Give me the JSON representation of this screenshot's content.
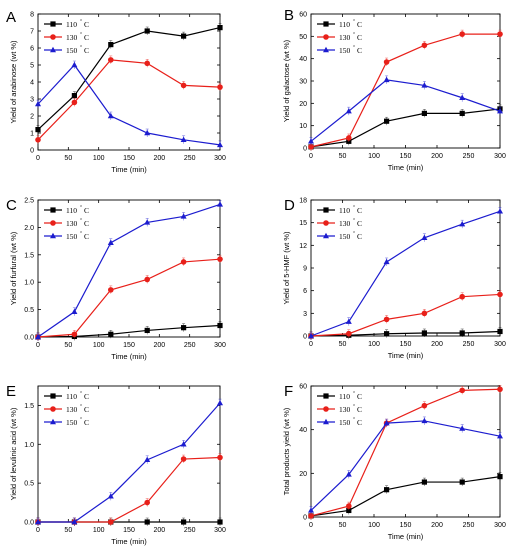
{
  "legend_units": "°C",
  "chart_data": [
    {
      "id": "A",
      "type": "line",
      "panel_label": "A",
      "xlabel": "Time (min)",
      "ylabel": "Yield of arabinose (wt %)",
      "xlim": [
        0,
        300
      ],
      "ylim": [
        0,
        8
      ],
      "xticks": [
        0,
        50,
        100,
        150,
        200,
        250,
        300
      ],
      "yticks": [
        0,
        1,
        2,
        3,
        4,
        5,
        6,
        7,
        8
      ],
      "x": [
        0,
        60,
        120,
        180,
        240,
        300
      ],
      "series": [
        {
          "name": "110 °C",
          "label_main": "110",
          "label_unit": "C",
          "color": "#000000",
          "marker": "square",
          "values": [
            1.2,
            3.2,
            6.2,
            7.0,
            6.7,
            7.2
          ]
        },
        {
          "name": "130 °C",
          "label_main": "130",
          "label_unit": "C",
          "color": "#e8201a",
          "marker": "circle",
          "values": [
            0.6,
            2.8,
            5.3,
            5.1,
            3.8,
            3.7
          ]
        },
        {
          "name": "150 °C",
          "label_main": "150",
          "label_unit": "C",
          "color": "#1c1ccf",
          "marker": "triangle",
          "values": [
            2.7,
            5.0,
            2.0,
            1.0,
            0.6,
            0.3
          ]
        }
      ]
    },
    {
      "id": "B",
      "type": "line",
      "panel_label": "B",
      "xlabel": "Time (min)",
      "ylabel": "Yield of galactose (wt %)",
      "xlim": [
        0,
        300
      ],
      "ylim": [
        0,
        60
      ],
      "xticks": [
        0,
        50,
        100,
        150,
        200,
        250,
        300
      ],
      "yticks": [
        0,
        10,
        20,
        30,
        40,
        50,
        60
      ],
      "x": [
        0,
        60,
        120,
        180,
        240,
        300
      ],
      "series": [
        {
          "name": "110 °C",
          "label_main": "110",
          "label_unit": "C",
          "color": "#000000",
          "marker": "square",
          "values": [
            0.5,
            3,
            12,
            15.5,
            15.5,
            17.5
          ]
        },
        {
          "name": "130 °C",
          "label_main": "130",
          "label_unit": "C",
          "color": "#e8201a",
          "marker": "circle",
          "values": [
            0.5,
            4.5,
            38.5,
            46,
            51,
            51
          ]
        },
        {
          "name": "150 °C",
          "label_main": "150",
          "label_unit": "C",
          "color": "#1c1ccf",
          "marker": "triangle",
          "values": [
            3,
            16.5,
            30.5,
            28,
            22.5,
            16.5
          ]
        }
      ]
    },
    {
      "id": "C",
      "type": "line",
      "panel_label": "C",
      "xlabel": "Time (min)",
      "ylabel": "Yield of furfural (wt %)",
      "xlim": [
        0,
        300
      ],
      "ylim": [
        0,
        2.5
      ],
      "xticks": [
        0,
        50,
        100,
        150,
        200,
        250,
        300
      ],
      "yticks": [
        0.0,
        0.5,
        1.0,
        1.5,
        2.0,
        2.5
      ],
      "ytick_labels": [
        "0.0",
        "0.5",
        "1.0",
        "1.5",
        "2.0",
        "2.5"
      ],
      "x": [
        0,
        60,
        120,
        180,
        240,
        300
      ],
      "series": [
        {
          "name": "110 °C",
          "label_main": "110",
          "label_unit": "C",
          "color": "#000000",
          "marker": "square",
          "values": [
            0,
            0.01,
            0.05,
            0.12,
            0.17,
            0.21
          ]
        },
        {
          "name": "130 °C",
          "label_main": "130",
          "label_unit": "C",
          "color": "#e8201a",
          "marker": "circle",
          "values": [
            0,
            0.05,
            0.86,
            1.05,
            1.37,
            1.42
          ]
        },
        {
          "name": "150 °C",
          "label_main": "150",
          "label_unit": "C",
          "color": "#1c1ccf",
          "marker": "triangle",
          "values": [
            0,
            0.46,
            1.72,
            2.09,
            2.2,
            2.42
          ]
        }
      ]
    },
    {
      "id": "D",
      "type": "line",
      "panel_label": "D",
      "xlabel": "Time (min)",
      "ylabel": "Yield of 5-HMF (wt %)",
      "xlim": [
        0,
        300
      ],
      "ylim": [
        0,
        18
      ],
      "xticks": [
        0,
        50,
        100,
        150,
        200,
        250,
        300
      ],
      "yticks": [
        0,
        3,
        6,
        9,
        12,
        15,
        18
      ],
      "x": [
        0,
        60,
        120,
        180,
        240,
        300
      ],
      "series": [
        {
          "name": "110 °C",
          "label_main": "110",
          "label_unit": "C",
          "color": "#000000",
          "marker": "square",
          "values": [
            0,
            0.1,
            0.3,
            0.4,
            0.4,
            0.6
          ]
        },
        {
          "name": "130 °C",
          "label_main": "130",
          "label_unit": "C",
          "color": "#e8201a",
          "marker": "circle",
          "values": [
            0,
            0.3,
            2.2,
            3.0,
            5.2,
            5.5
          ]
        },
        {
          "name": "150 °C",
          "label_main": "150",
          "label_unit": "C",
          "color": "#1c1ccf",
          "marker": "triangle",
          "values": [
            0,
            1.9,
            9.8,
            13.0,
            14.8,
            16.5
          ]
        }
      ]
    },
    {
      "id": "E",
      "type": "line",
      "panel_label": "E",
      "xlabel": "Time (min)",
      "ylabel": "Yield of levulinic acid (wt %)",
      "xlim": [
        0,
        300
      ],
      "ylim": [
        0,
        1.75
      ],
      "xticks": [
        0,
        50,
        100,
        150,
        200,
        250,
        300
      ],
      "yticks": [
        0.0,
        0.5,
        1.0,
        1.5
      ],
      "ytick_labels": [
        "0.0",
        "0.5",
        "1.0",
        "1.5"
      ],
      "x": [
        0,
        60,
        120,
        180,
        240,
        300
      ],
      "series": [
        {
          "name": "110 °C",
          "label_main": "110",
          "label_unit": "C",
          "color": "#000000",
          "marker": "square",
          "values": [
            0,
            0,
            0,
            0,
            0,
            0
          ]
        },
        {
          "name": "130 °C",
          "label_main": "130",
          "label_unit": "C",
          "color": "#e8201a",
          "marker": "circle",
          "values": [
            0,
            0,
            0,
            0.25,
            0.81,
            0.83
          ]
        },
        {
          "name": "150 °C",
          "label_main": "150",
          "label_unit": "C",
          "color": "#1c1ccf",
          "marker": "triangle",
          "values": [
            0,
            0,
            0.33,
            0.8,
            1.0,
            1.53
          ]
        }
      ]
    },
    {
      "id": "F",
      "type": "line",
      "panel_label": "F",
      "xlabel": "Time (min)",
      "ylabel": "Total products yield (wt %)",
      "xlim": [
        0,
        300
      ],
      "ylim": [
        0,
        60
      ],
      "xticks": [
        0,
        50,
        100,
        150,
        200,
        250,
        300
      ],
      "yticks": [
        0,
        20,
        40,
        60
      ],
      "x": [
        0,
        60,
        120,
        180,
        240,
        300
      ],
      "series": [
        {
          "name": "110 °C",
          "label_main": "110",
          "label_unit": "C",
          "color": "#000000",
          "marker": "square",
          "values": [
            0.5,
            3,
            12.5,
            16,
            16,
            18.5
          ]
        },
        {
          "name": "130 °C",
          "label_main": "130",
          "label_unit": "C",
          "color": "#e8201a",
          "marker": "circle",
          "values": [
            0.5,
            5,
            43,
            51,
            58,
            58.5
          ]
        },
        {
          "name": "150 °C",
          "label_main": "150",
          "label_unit": "C",
          "color": "#1c1ccf",
          "marker": "triangle",
          "values": [
            3,
            19.5,
            43,
            44,
            40.5,
            37
          ]
        }
      ]
    }
  ]
}
